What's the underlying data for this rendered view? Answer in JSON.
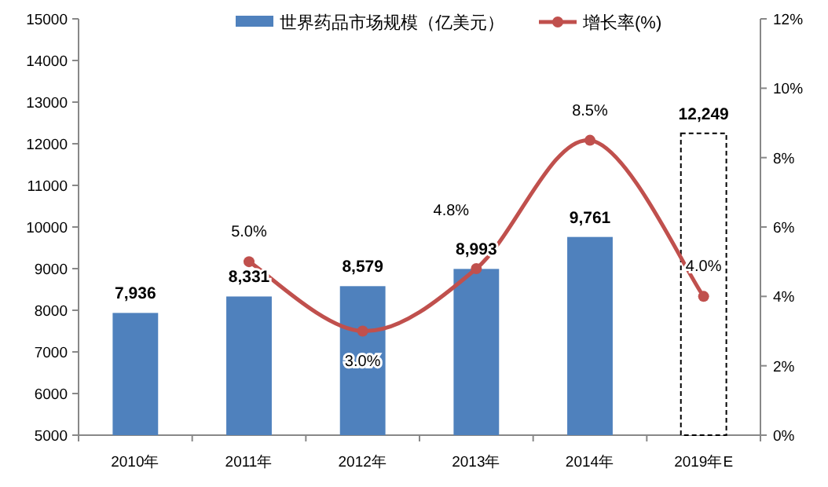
{
  "chart_data": {
    "type": "bar",
    "categories": [
      "2010年",
      "2011年",
      "2012年",
      "2013年",
      "2014年",
      "2019年E"
    ],
    "series": [
      {
        "name": "世界药品市场规模（亿美元）",
        "type": "bar",
        "color": "#4f81bd",
        "colors": [
          "#4f81bd",
          "#4f81bd",
          "#4f81bd",
          "#4f81bd",
          "#4f81bd",
          "#ffffff"
        ],
        "values": [
          7936,
          8331,
          8579,
          8993,
          9761,
          12249
        ],
        "value_labels": [
          "7,936",
          "8,331",
          "8,579",
          "8,993",
          "9,761",
          "12,249"
        ]
      },
      {
        "name": "增长率(%)",
        "type": "line",
        "axis": "y2",
        "color": "#c0504d",
        "values": [
          null,
          5.0,
          3.0,
          4.8,
          8.5,
          4.0
        ],
        "value_labels": [
          null,
          "5.0%",
          "3.0%",
          "4.8%",
          "8.5%",
          "4.0%"
        ]
      }
    ],
    "ylim": [
      5000,
      15000
    ],
    "yticks": [
      5000,
      6000,
      7000,
      8000,
      9000,
      10000,
      11000,
      12000,
      13000,
      14000,
      15000
    ],
    "y2lim": [
      0,
      12
    ],
    "y2ticks": [
      {
        "value": 0,
        "label": "0%"
      },
      {
        "value": 2,
        "label": "2%"
      },
      {
        "value": 4,
        "label": "4%"
      },
      {
        "value": 6,
        "label": "6%"
      },
      {
        "value": 8,
        "label": "8%"
      },
      {
        "value": 10,
        "label": "10%"
      },
      {
        "value": 12,
        "label": "12%"
      }
    ],
    "legend": "top",
    "marker": "circle",
    "grid": false
  }
}
